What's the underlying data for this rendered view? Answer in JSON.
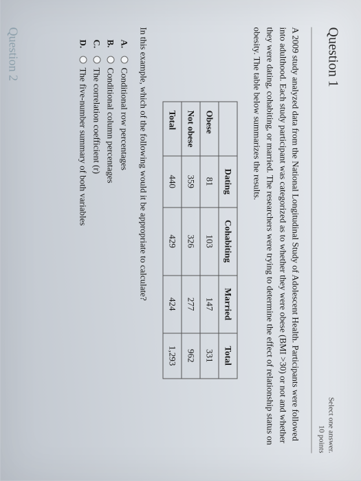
{
  "question": {
    "number": "Question 1",
    "instruction": "Select one answer.",
    "points": "10 points",
    "stem": "A 2009 study analyzed data from the National Longitudinal Study of Adolescent Health. Participants were followed into adulthood. Each study participant was categorized as to whether they were obese (BMI >30) or not and whether they were dating, cohabiting, or married. The researchers were trying to determine the effect of relationship status on obesity. The table below summarizes the results.",
    "followup": "In this example, which of the following would it be appropriate to calculate?"
  },
  "table": {
    "columns": [
      "",
      "Dating",
      "Cohabiting",
      "Married",
      "Total"
    ],
    "rows": [
      [
        "Obese",
        "81",
        "103",
        "147",
        "331"
      ],
      [
        "Not obese",
        "359",
        "326",
        "277",
        "962"
      ],
      [
        "Total",
        "440",
        "429",
        "424",
        "1,293"
      ]
    ]
  },
  "options": [
    {
      "letter": "A.",
      "text": "Conditional row percentages"
    },
    {
      "letter": "B.",
      "text": "Conditional column percentages"
    },
    {
      "letter": "C.",
      "text": "The correlation coefficient (r)"
    },
    {
      "letter": "D.",
      "text": "The five-number summary of both variables"
    }
  ],
  "nextQuestion": "Question 2"
}
